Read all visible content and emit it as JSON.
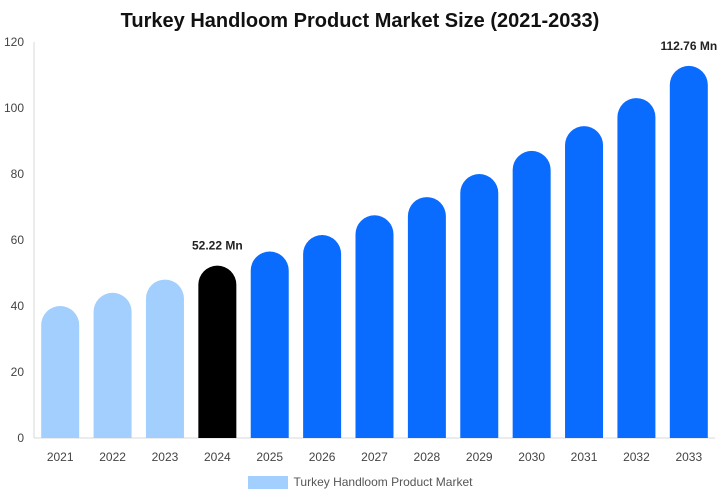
{
  "chart_data": {
    "type": "bar",
    "title": "Turkey Handloom Product Market Size (2021-2033)",
    "categories": [
      "2021",
      "2022",
      "2023",
      "2024",
      "2025",
      "2026",
      "2027",
      "2028",
      "2029",
      "2030",
      "2031",
      "2032",
      "2033"
    ],
    "series": [
      {
        "name": "Turkey Handloom Product Market",
        "values": [
          40,
          44,
          48,
          52.22,
          56.5,
          61.5,
          67.5,
          73,
          80,
          87,
          94.5,
          103,
          112.76
        ]
      }
    ],
    "bar_colors": [
      "#a2cffe",
      "#a2cffe",
      "#a2cffe",
      "#000000",
      "#0a6cff",
      "#0a6cff",
      "#0a6cff",
      "#0a6cff",
      "#0a6cff",
      "#0a6cff",
      "#0a6cff",
      "#0a6cff",
      "#0a6cff"
    ],
    "data_labels": [
      {
        "index": 3,
        "text": "52.22 Mn"
      },
      {
        "index": 12,
        "text": "112.76 Mn"
      }
    ],
    "yticks": [
      0,
      20,
      40,
      60,
      80,
      100,
      120
    ],
    "ylim": [
      0,
      120
    ],
    "xlabel": "",
    "ylabel": "",
    "grid": false,
    "legend_position": "bottom",
    "legend_color": "#a2cffe"
  }
}
